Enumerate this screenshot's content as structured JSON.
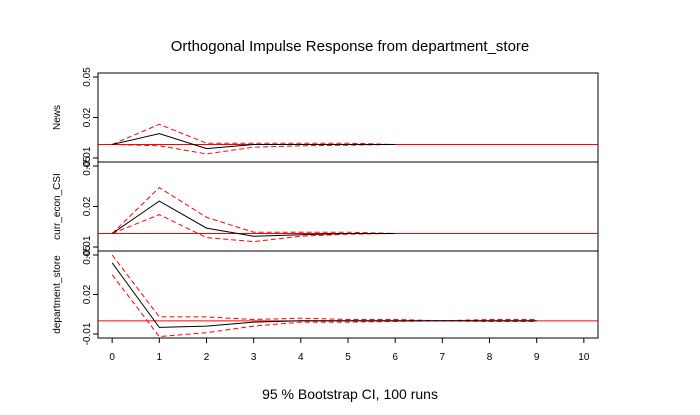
{
  "chart_data": {
    "type": "line",
    "title": "Orthogonal Impulse Response from department_store",
    "xlabel": "95 % Bootstrap CI,  100 runs",
    "x_ticks": [
      "0",
      "1",
      "2",
      "3",
      "4",
      "5",
      "6",
      "7",
      "8",
      "9",
      "10"
    ],
    "xlim": [
      -0.3,
      10.3
    ],
    "colors": {
      "response": "#000000",
      "ci": "#ff0000",
      "zero": "#ff0000"
    },
    "panels": [
      {
        "ylabel": "News",
        "ylim": [
          -0.01,
          0.05
        ],
        "y_ticks": [
          {
            "v": 0.05,
            "t": "0.05"
          },
          {
            "v": 0.02,
            "t": "0.02"
          },
          {
            "v": -0.01,
            "t": "-0.01"
          }
        ],
        "x": [
          0,
          1,
          2,
          3,
          4,
          5,
          6
        ],
        "response": [
          0.0,
          0.008,
          -0.003,
          0.0,
          0.0,
          0.0,
          0.0
        ],
        "upper": [
          0.0,
          0.015,
          0.001,
          0.001,
          0.001,
          0.001,
          0.0
        ],
        "lower": [
          0.0,
          -0.001,
          -0.007,
          -0.002,
          -0.001,
          -0.0005,
          0.0
        ]
      },
      {
        "ylabel": "curr_econ_CSI",
        "ylim": [
          -0.01,
          0.05
        ],
        "y_ticks": [
          {
            "v": 0.05,
            "t": "0.05"
          },
          {
            "v": 0.02,
            "t": "0.02"
          },
          {
            "v": -0.01,
            "t": "-0.01"
          }
        ],
        "x": [
          0,
          1,
          2,
          3,
          4,
          5,
          6
        ],
        "response": [
          0.0,
          0.024,
          0.004,
          -0.002,
          -0.001,
          0.0,
          0.0
        ],
        "upper": [
          0.0,
          0.034,
          0.012,
          0.001,
          0.001,
          0.001,
          0.0
        ],
        "lower": [
          0.0,
          0.014,
          -0.003,
          -0.006,
          -0.002,
          -0.0005,
          0.0
        ]
      },
      {
        "ylabel": "department_store",
        "ylim": [
          -0.01,
          0.05
        ],
        "y_ticks": [
          {
            "v": 0.05,
            "t": "0.05"
          },
          {
            "v": 0.02,
            "t": "0.02"
          },
          {
            "v": -0.01,
            "t": "-0.01"
          }
        ],
        "x": [
          0,
          1,
          2,
          3,
          4,
          5,
          6,
          7,
          8,
          9
        ],
        "response": [
          0.044,
          -0.005,
          -0.004,
          -0.001,
          0.0,
          0.0,
          0.0,
          0.0,
          0.0,
          0.0
        ],
        "upper": [
          0.05,
          0.003,
          0.003,
          0.001,
          0.002,
          0.001,
          0.001,
          0.0,
          0.001,
          0.001
        ],
        "lower": [
          0.035,
          -0.012,
          -0.009,
          -0.004,
          -0.001,
          -0.001,
          -0.0005,
          0.0,
          -0.0005,
          -0.0005
        ]
      }
    ]
  }
}
